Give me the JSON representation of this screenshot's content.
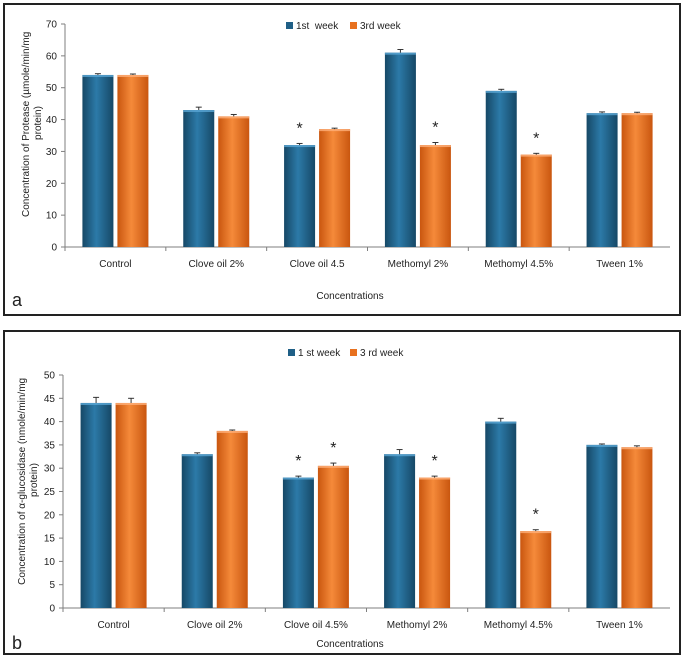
{
  "colors": {
    "week1": "#1f5f86",
    "week3": "#e8711f",
    "axis": "#7f7f7f",
    "text": "#222222"
  },
  "chart_data": [
    {
      "panel_label": "a",
      "type": "bar",
      "categories": [
        "Control",
        "Clove oil 2%",
        "Clove oil 4.5",
        "Methomyl 2%",
        "Methomyl 4.5%",
        "Tween 1%"
      ],
      "series": [
        {
          "name": "1st  week",
          "values": [
            54,
            43,
            32,
            61,
            49,
            42
          ],
          "errors": [
            0.4,
            0.9,
            0.5,
            1.0,
            0.5,
            0.4
          ]
        },
        {
          "name": "3rd week",
          "values": [
            54,
            41,
            37,
            32,
            29,
            42
          ],
          "errors": [
            0.3,
            0.6,
            0.3,
            0.8,
            0.4,
            0.3
          ]
        }
      ],
      "significance": [
        [
          false,
          false
        ],
        [
          false,
          false
        ],
        [
          true,
          false
        ],
        [
          false,
          true
        ],
        [
          false,
          true
        ],
        [
          false,
          false
        ]
      ],
      "significance_mark": "*",
      "xlabel": "Concentrations",
      "ylabel": "Concentration of Protease (µmole/min/mg protein)",
      "ylim": [
        0,
        70
      ],
      "yticks": [
        0,
        10,
        20,
        30,
        40,
        50,
        60,
        70
      ],
      "legend": "top-center",
      "grid": false
    },
    {
      "panel_label": "b",
      "type": "bar",
      "categories": [
        "Control",
        "Clove oil 2%",
        "Clove oil 4.5%",
        "Methomyl 2%",
        "Methomyl 4.5%",
        "Tween 1%"
      ],
      "series": [
        {
          "name": "1 st week",
          "values": [
            44,
            33,
            28,
            33,
            40,
            35
          ],
          "errors": [
            1.2,
            0.3,
            0.3,
            1.0,
            0.7,
            0.2
          ]
        },
        {
          "name": "3 rd week",
          "values": [
            44,
            38,
            30.5,
            28,
            16.5,
            34.5
          ],
          "errors": [
            1.0,
            0.2,
            0.6,
            0.3,
            0.3,
            0.3
          ]
        }
      ],
      "significance": [
        [
          false,
          false
        ],
        [
          false,
          false
        ],
        [
          true,
          true
        ],
        [
          false,
          true
        ],
        [
          false,
          true
        ],
        [
          false,
          false
        ]
      ],
      "significance_mark": "*",
      "xlabel": "Concentrations",
      "ylabel": "Concentration of α-glucosidase (nmole/min/mg protein)",
      "ylim": [
        0,
        50
      ],
      "yticks": [
        0,
        5,
        10,
        15,
        20,
        25,
        30,
        35,
        40,
        45,
        50
      ],
      "legend": "top-center",
      "grid": false
    }
  ]
}
